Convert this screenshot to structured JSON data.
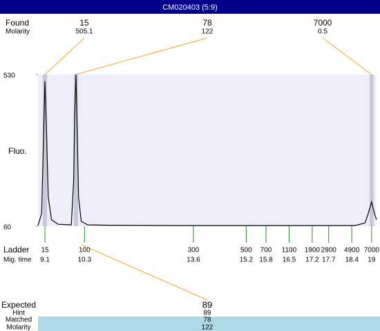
{
  "chart_data": {
    "type": "line",
    "title": "CM020403 (5:9)",
    "ylabel": "Fluo.",
    "ylim": [
      60,
      530
    ],
    "yticks": [
      60,
      530
    ],
    "xlim": [
      8.89,
      19.15
    ],
    "x": [
      8.89,
      9.0,
      9.05,
      9.1,
      9.15,
      9.2,
      9.3,
      9.5,
      9.9,
      9.97,
      10.0,
      10.04,
      10.08,
      10.12,
      10.2,
      10.4,
      11.0,
      13.0,
      16.0,
      18.5,
      18.8,
      18.9,
      19.0,
      19.1,
      19.15
    ],
    "series": [
      {
        "color": "#000000",
        "values": [
          62,
          100,
          300,
          509,
          350,
          150,
          80,
          66,
          64,
          200,
          400,
          530,
          350,
          150,
          75,
          64,
          63,
          62,
          62,
          62,
          70,
          100,
          135,
          95,
          80
        ]
      }
    ],
    "xticks": [
      9.1,
      10.3,
      13.6,
      15.2,
      15.8,
      16.5,
      17.2,
      17.7,
      18.4,
      19
    ],
    "xlabel": "Mig. time",
    "ladder_label": "Ladder",
    "ladder": [
      15,
      100,
      300,
      500,
      700,
      1100,
      1900,
      2900,
      4900,
      7000
    ],
    "found": {
      "label": "Found",
      "molarity_label": "Molarity",
      "sizes": [
        15,
        78,
        7000
      ],
      "molarity": [
        505.1,
        122,
        0.5
      ],
      "x": [
        9.1,
        10.04,
        19.0
      ]
    },
    "expected": {
      "label": "Expected",
      "value": 89,
      "hint_label": "Hint",
      "hint": 89,
      "matched_label": "Matched",
      "matched": 78,
      "molarity_label": "Molarity",
      "molarity": 122
    }
  }
}
